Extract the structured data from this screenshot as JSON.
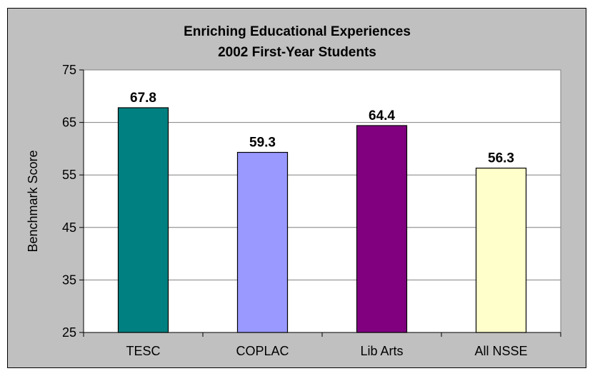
{
  "chart_data": {
    "type": "bar",
    "title": "Enriching Educational Experiences",
    "subtitle": "2002 First-Year Students",
    "xlabel": "",
    "ylabel": "Benchmark Score",
    "categories": [
      "TESC",
      "COPLAC",
      "Lib Arts",
      "All NSSE"
    ],
    "values": [
      67.8,
      59.3,
      64.4,
      56.3
    ],
    "data_labels": [
      "67.8",
      "59.3",
      "64.4",
      "56.3"
    ],
    "bar_colors": [
      "#008080",
      "#9999ff",
      "#800080",
      "#ffffcc"
    ],
    "ylim": [
      25,
      75
    ],
    "yticks": [
      25,
      35,
      45,
      55,
      65,
      75
    ],
    "ytick_labels": [
      "25",
      "35",
      "45",
      "55",
      "65",
      "75"
    ],
    "grid": true,
    "legend": "none",
    "colors": {
      "chart_area": "#c0c0c0",
      "plot_area": "#ffffff",
      "gridline": "#808080"
    }
  }
}
